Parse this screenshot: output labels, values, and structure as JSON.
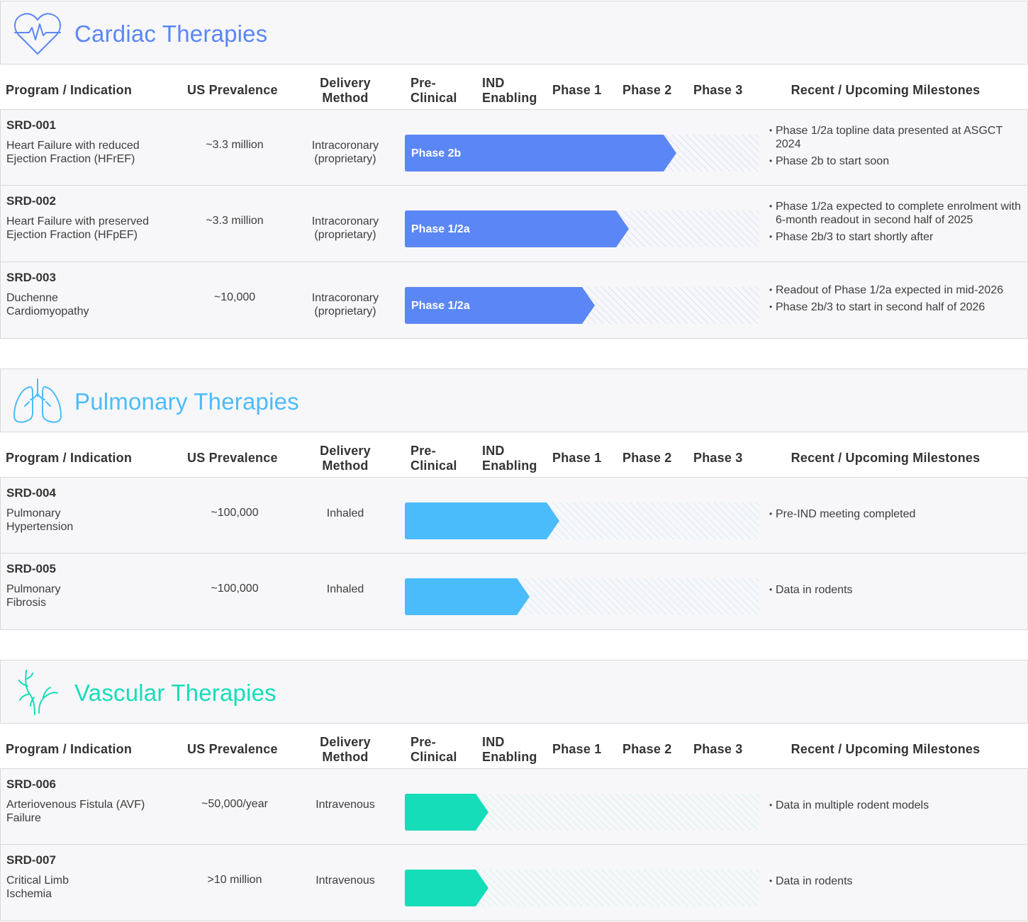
{
  "columns": {
    "program": "Program / Indication",
    "prevalence": "US Prevalence",
    "delivery_line1": "Delivery",
    "delivery_line2": "Method",
    "preclinical_line1": "Pre-",
    "preclinical_line2": "Clinical",
    "ind_line1": "IND",
    "ind_line2": "Enabling",
    "phase1": "Phase 1",
    "phase2": "Phase 2",
    "phase3": "Phase 3",
    "milestones": "Recent / Upcoming Milestones"
  },
  "sections": [
    {
      "title": "Cardiac Therapies",
      "icon": "heart-pulse-icon",
      "color": "#5b86f5",
      "hatch_color": "#c9d6f7",
      "programs": [
        {
          "code": "SRD-001",
          "indication_line1": "Heart Failure with reduced",
          "indication_line2": "Ejection Fraction (HFrEF)",
          "prevalence": "~3.3 million",
          "delivery_line1": "Intracoronary",
          "delivery_line2": "(proprietary)",
          "stage_label": "Phase 2b",
          "progress": 0.73,
          "milestones": [
            "Phase 1/2a topline data presented at ASGCT 2024",
            "Phase 2b to start soon"
          ]
        },
        {
          "code": "SRD-002",
          "indication_line1": "Heart Failure with preserved",
          "indication_line2": "Ejection Fraction (HFpEF)",
          "prevalence": "~3.3 million",
          "delivery_line1": "Intracoronary",
          "delivery_line2": "(proprietary)",
          "stage_label": "Phase 1/2a",
          "progress": 0.595,
          "milestones": [
            "Phase 1/2a expected to complete enrolment with 6-month readout in second half of 2025",
            "Phase 2b/3 to start shortly after"
          ]
        },
        {
          "code": "SRD-003",
          "indication_line1": "Duchenne",
          "indication_line2": "Cardiomyopathy",
          "prevalence": "~10,000",
          "delivery_line1": "Intracoronary",
          "delivery_line2": "(proprietary)",
          "stage_label": "Phase 1/2a",
          "progress": 0.5,
          "milestones": [
            "Readout of Phase 1/2a expected in mid-2026",
            "Phase 2b/3 to start in second half of 2026"
          ]
        }
      ]
    },
    {
      "title": "Pulmonary Therapies",
      "icon": "lungs-icon",
      "color": "#4bbcfb",
      "hatch_color": "#c3e6f7",
      "programs": [
        {
          "code": "SRD-004",
          "indication_line1": "Pulmonary",
          "indication_line2": "Hypertension",
          "prevalence": "~100,000",
          "delivery_line1": "Inhaled",
          "delivery_line2": "",
          "stage_label": "",
          "progress": 0.4,
          "milestones": [
            "Pre-IND meeting completed"
          ]
        },
        {
          "code": "SRD-005",
          "indication_line1": "Pulmonary",
          "indication_line2": "Fibrosis",
          "prevalence": "~100,000",
          "delivery_line1": "Inhaled",
          "delivery_line2": "",
          "stage_label": "",
          "progress": 0.315,
          "milestones": [
            "Data in rodents"
          ]
        }
      ]
    },
    {
      "title": "Vascular Therapies",
      "icon": "blood-vessel-icon",
      "color": "#16ddb9",
      "hatch_color": "#bff0e3",
      "programs": [
        {
          "code": "SRD-006",
          "indication_line1": "Arteriovenous Fistula (AVF)",
          "indication_line2": "Failure",
          "prevalence": "~50,000/year",
          "delivery_line1": "Intravenous",
          "delivery_line2": "",
          "stage_label": "",
          "progress": 0.2,
          "milestones": [
            "Data in multiple rodent models"
          ]
        },
        {
          "code": "SRD-007",
          "indication_line1": "Critical Limb",
          "indication_line2": "Ischemia",
          "prevalence": ">10 million",
          "delivery_line1": "Intravenous",
          "delivery_line2": "",
          "stage_label": "",
          "progress": 0.2,
          "milestones": [
            "Data in rodents"
          ]
        }
      ]
    }
  ]
}
